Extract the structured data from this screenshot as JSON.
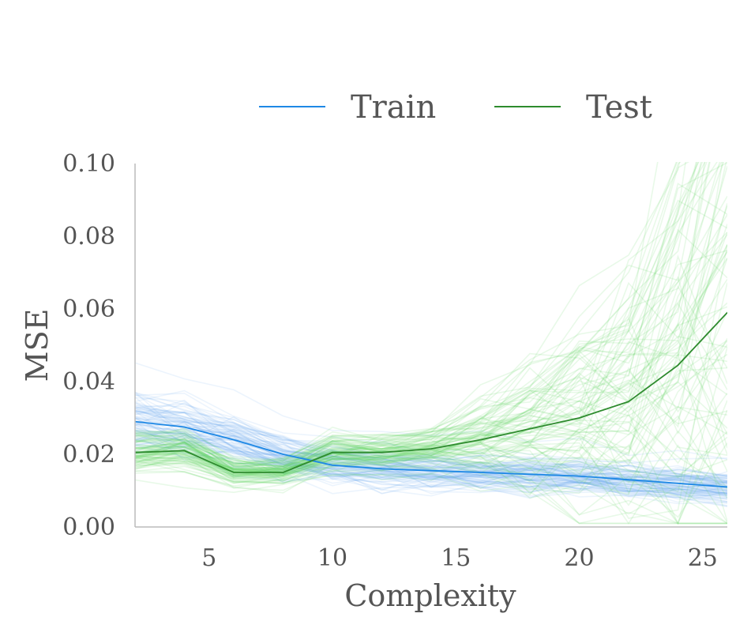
{
  "chart_data": {
    "type": "line",
    "title": "",
    "xlabel": "Complexity",
    "ylabel": "MSE",
    "xlim": [
      2,
      26
    ],
    "ylim": [
      0.0,
      0.1
    ],
    "x_ticks": [
      5,
      10,
      15,
      20,
      25
    ],
    "x_tick_labels": [
      "5",
      "10",
      "15",
      "20",
      "25"
    ],
    "y_ticks": [
      0.0,
      0.02,
      0.04,
      0.06,
      0.08,
      0.1
    ],
    "y_tick_labels": [
      "0.00",
      "0.02",
      "0.04",
      "0.06",
      "0.08",
      "0.10"
    ],
    "grid": false,
    "legend_position": "top",
    "x": [
      2,
      4,
      6,
      8,
      10,
      12,
      14,
      16,
      18,
      20,
      22,
      24,
      26
    ],
    "series": [
      {
        "name": "Train",
        "color": "#1e88e5",
        "band_color": "#64a8f0",
        "values": [
          0.029,
          0.0275,
          0.024,
          0.02,
          0.017,
          0.016,
          0.0155,
          0.015,
          0.0145,
          0.014,
          0.013,
          0.012,
          0.011
        ]
      },
      {
        "name": "Test",
        "color": "#2e8b2e",
        "band_color": "#5ed35e",
        "values": [
          0.0205,
          0.021,
          0.015,
          0.015,
          0.0205,
          0.0205,
          0.0215,
          0.024,
          0.027,
          0.03,
          0.0345,
          0.0445,
          0.059
        ]
      }
    ]
  }
}
